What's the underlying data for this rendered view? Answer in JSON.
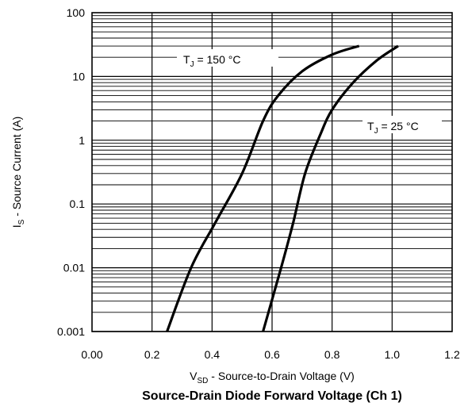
{
  "chart_data": {
    "type": "line",
    "title": "Source-Drain Diode Forward Voltage (Ch 1)",
    "xlabel": {
      "main": "V",
      "sub": "SD",
      "rest": " - Source-to-Drain Voltage (V)"
    },
    "ylabel": {
      "main": "I",
      "sub": "S",
      "rest": " - Source Current (A)"
    },
    "xlim": [
      0,
      1.2
    ],
    "ylim": [
      0.001,
      100
    ],
    "yscale": "log",
    "grid": true,
    "x_ticks": [
      "0.00",
      "0.2",
      "0.4",
      "0.6",
      "0.8",
      "1.0",
      "1.2"
    ],
    "y_ticks": [
      "0.001",
      "0.01",
      "0.1",
      "1",
      "10",
      "100"
    ],
    "series": [
      {
        "label": {
          "main": "T",
          "sub": "J",
          "rest": " = 150 °C"
        },
        "points": [
          [
            0.25,
            0.001
          ],
          [
            0.33,
            0.01
          ],
          [
            0.41,
            0.05
          ],
          [
            0.5,
            0.3
          ],
          [
            0.57,
            2.0
          ],
          [
            0.62,
            5.0
          ],
          [
            0.7,
            12
          ],
          [
            0.8,
            22
          ],
          [
            0.89,
            30
          ]
        ]
      },
      {
        "label": {
          "main": "T",
          "sub": "J",
          "rest": " = 25 °C"
        },
        "points": [
          [
            0.57,
            0.001
          ],
          [
            0.63,
            0.01
          ],
          [
            0.67,
            0.05
          ],
          [
            0.71,
            0.3
          ],
          [
            0.76,
            1.2
          ],
          [
            0.8,
            3.0
          ],
          [
            0.87,
            8.0
          ],
          [
            0.95,
            18
          ],
          [
            1.02,
            30
          ]
        ]
      }
    ]
  }
}
